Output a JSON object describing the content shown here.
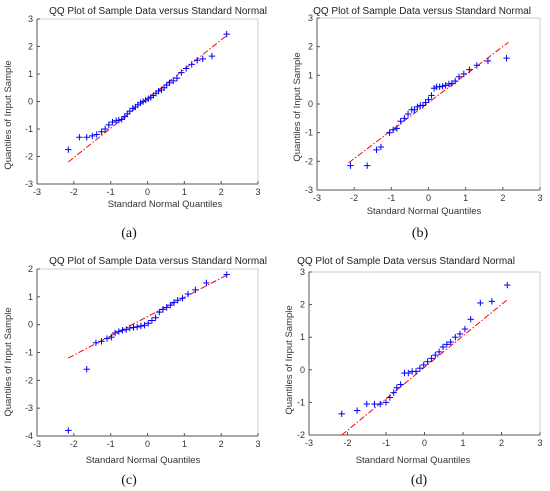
{
  "figure": {
    "panels": [
      {
        "id": "a",
        "label": "(a)"
      },
      {
        "id": "b",
        "label": "(b)"
      },
      {
        "id": "c",
        "label": "(c)"
      },
      {
        "id": "d",
        "label": "(d)"
      }
    ]
  },
  "chart_data": [
    {
      "type": "scatter",
      "title": "QQ Plot of Sample Data versus Standard Normal",
      "xlabel": "Standard Normal Quantiles",
      "ylabel": "Quantiles of Input Sample",
      "xlim": [
        -3,
        3
      ],
      "ylim": [
        -3,
        3
      ],
      "xticks": [
        -3,
        -2,
        -1,
        0,
        1,
        2,
        3
      ],
      "yticks": [
        -3,
        -2,
        -1,
        0,
        1,
        2,
        3
      ],
      "marker": "+",
      "marker_color": "#0000ff",
      "reference_line": {
        "style": "dash-dot",
        "color": "#ff0000",
        "x": [
          -2.15,
          2.15
        ],
        "y": [
          -2.2,
          2.4
        ]
      },
      "x": [
        -2.15,
        -1.85,
        -1.65,
        -1.5,
        -1.38,
        -1.25,
        -1.15,
        -1.05,
        -0.95,
        -0.85,
        -0.78,
        -0.7,
        -0.62,
        -0.55,
        -0.48,
        -0.4,
        -0.33,
        -0.26,
        -0.19,
        -0.12,
        -0.05,
        0.02,
        0.09,
        0.16,
        0.23,
        0.3,
        0.38,
        0.45,
        0.52,
        0.6,
        0.7,
        0.8,
        0.92,
        1.05,
        1.2,
        1.35,
        1.5,
        1.75,
        2.15
      ],
      "y": [
        -1.75,
        -1.3,
        -1.3,
        -1.25,
        -1.2,
        -1.1,
        -1.0,
        -0.85,
        -0.75,
        -0.7,
        -0.68,
        -0.65,
        -0.55,
        -0.45,
        -0.35,
        -0.25,
        -0.2,
        -0.12,
        -0.05,
        0.0,
        0.05,
        0.1,
        0.15,
        0.22,
        0.3,
        0.38,
        0.42,
        0.5,
        0.6,
        0.68,
        0.75,
        0.85,
        1.05,
        1.2,
        1.35,
        1.5,
        1.55,
        1.65,
        2.45
      ]
    },
    {
      "type": "scatter",
      "title": "QQ Plot of Sample Data versus Standard Normal",
      "xlabel": "Standard Normal Quantiles",
      "ylabel": "Quantiles of Input Sample",
      "xlim": [
        -3,
        3
      ],
      "ylim": [
        -3,
        3
      ],
      "xticks": [
        -3,
        -2,
        -1,
        0,
        1,
        2,
        3
      ],
      "yticks": [
        -3,
        -2,
        -1,
        0,
        1,
        2,
        3
      ],
      "marker": "+",
      "marker_color": "#0000ff",
      "reference_line": {
        "style": "dash-dot",
        "color": "#ff0000",
        "x": [
          -2.15,
          2.15
        ],
        "y": [
          -2.05,
          2.15
        ]
      },
      "x": [
        -2.1,
        -1.65,
        -1.4,
        -1.28,
        -1.05,
        -0.95,
        -0.85,
        -0.75,
        -0.65,
        -0.55,
        -0.45,
        -0.38,
        -0.3,
        -0.22,
        -0.15,
        -0.08,
        0.0,
        0.08,
        0.15,
        0.22,
        0.3,
        0.38,
        0.46,
        0.55,
        0.63,
        0.72,
        0.82,
        0.95,
        1.1,
        1.3,
        1.6,
        2.1
      ],
      "y": [
        -2.15,
        -2.15,
        -1.6,
        -1.5,
        -1.0,
        -0.9,
        -0.85,
        -0.6,
        -0.5,
        -0.35,
        -0.2,
        -0.2,
        -0.1,
        -0.05,
        -0.05,
        0.05,
        0.15,
        0.3,
        0.55,
        0.6,
        0.6,
        0.62,
        0.65,
        0.7,
        0.72,
        0.8,
        0.95,
        1.05,
        1.2,
        1.35,
        1.5,
        1.6
      ]
    },
    {
      "type": "scatter",
      "title": "QQ Plot of Sample Data versus Standard Normal",
      "xlabel": "Standard Normal Quantiles",
      "ylabel": "Quantiles of Input Sample",
      "xlim": [
        -3,
        3
      ],
      "ylim": [
        -4,
        2
      ],
      "xticks": [
        -3,
        -2,
        -1,
        0,
        1,
        2,
        3
      ],
      "yticks": [
        -4,
        -3,
        -2,
        -1,
        0,
        1,
        2
      ],
      "marker": "+",
      "marker_color": "#0000ff",
      "reference_line": {
        "style": "dash-dot",
        "color": "#ff0000",
        "x": [
          -2.15,
          2.15
        ],
        "y": [
          -1.2,
          1.78
        ]
      },
      "x": [
        -2.15,
        -1.65,
        -1.4,
        -1.25,
        -1.1,
        -0.98,
        -0.88,
        -0.78,
        -0.68,
        -0.58,
        -0.48,
        -0.38,
        -0.28,
        -0.18,
        -0.08,
        0.02,
        0.12,
        0.22,
        0.32,
        0.42,
        0.52,
        0.62,
        0.72,
        0.82,
        0.95,
        1.1,
        1.3,
        1.6,
        2.15
      ],
      "y": [
        -3.8,
        -1.6,
        -0.65,
        -0.6,
        -0.5,
        -0.45,
        -0.3,
        -0.25,
        -0.2,
        -0.18,
        -0.12,
        -0.1,
        -0.08,
        -0.05,
        -0.02,
        0.05,
        0.15,
        0.25,
        0.45,
        0.55,
        0.62,
        0.7,
        0.8,
        0.88,
        0.95,
        1.1,
        1.25,
        1.5,
        1.8
      ]
    },
    {
      "type": "scatter",
      "title": "QQ Plot of Sample Data versus Standard Normal",
      "xlabel": "Standard Normal Quantiles",
      "ylabel": "Quantiles of Input Sample",
      "xlim": [
        -3,
        3
      ],
      "ylim": [
        -2,
        3
      ],
      "xticks": [
        -3,
        -2,
        -1,
        0,
        1,
        2,
        3
      ],
      "yticks": [
        -2,
        -1,
        0,
        1,
        2,
        3
      ],
      "marker": "+",
      "marker_color": "#0000ff",
      "reference_line": {
        "style": "dash-dot",
        "color": "#ff0000",
        "x": [
          -2.15,
          2.15
        ],
        "y": [
          -2.0,
          2.15
        ]
      },
      "x": [
        -2.15,
        -1.75,
        -1.5,
        -1.3,
        -1.15,
        -1.0,
        -0.9,
        -0.8,
        -0.72,
        -0.62,
        -0.52,
        -0.42,
        -0.32,
        -0.22,
        -0.12,
        -0.02,
        0.08,
        0.18,
        0.28,
        0.38,
        0.48,
        0.58,
        0.68,
        0.8,
        0.92,
        1.05,
        1.2,
        1.45,
        1.75,
        2.15
      ],
      "y": [
        -1.35,
        -1.25,
        -1.05,
        -1.05,
        -1.05,
        -1.0,
        -0.85,
        -0.7,
        -0.55,
        -0.45,
        -0.1,
        -0.1,
        -0.05,
        -0.05,
        0.05,
        0.15,
        0.25,
        0.35,
        0.45,
        0.55,
        0.7,
        0.78,
        0.85,
        1.0,
        1.1,
        1.25,
        1.55,
        2.05,
        2.1,
        2.6
      ]
    }
  ]
}
